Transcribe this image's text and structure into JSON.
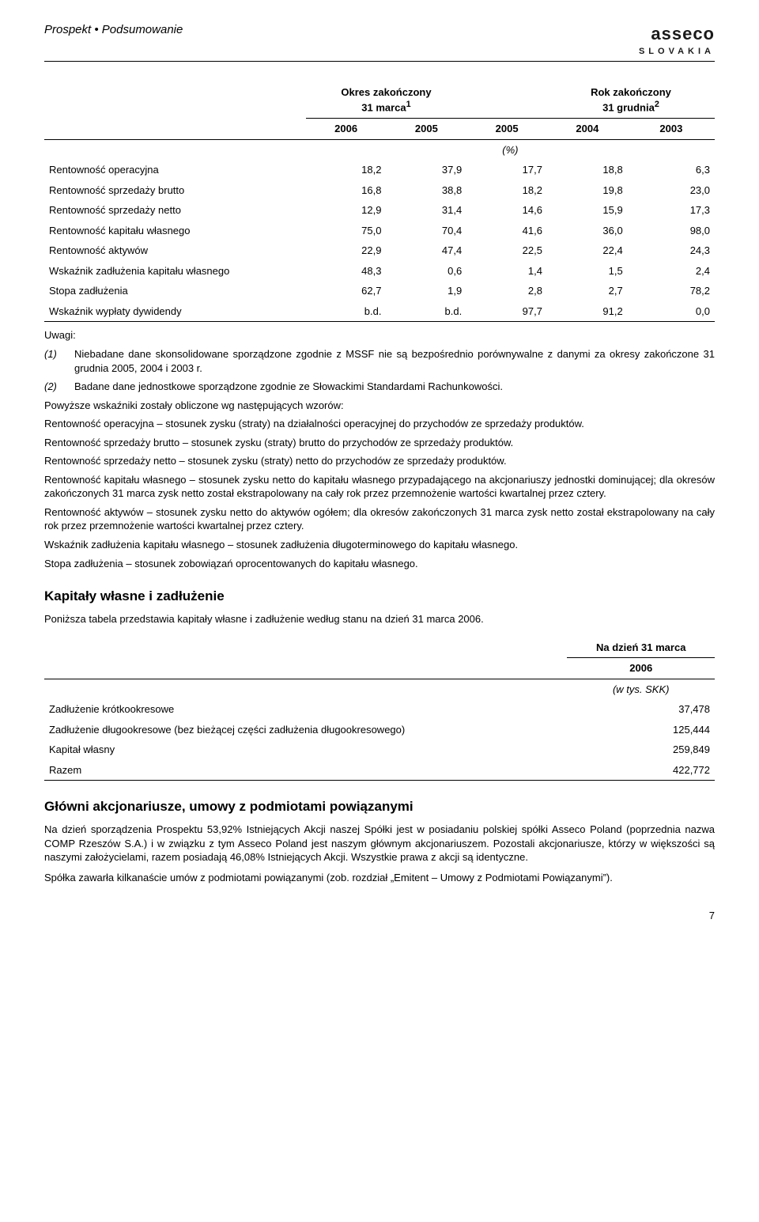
{
  "header": {
    "left": "Prospekt • Podsumowanie",
    "logo_line1": "asseco",
    "logo_line2": "SLOVAKIA"
  },
  "fin_table": {
    "col_header_left": "Okres zakończony\n31 marca",
    "col_header_left_sup": "1",
    "col_header_right": "Rok zakończony\n31 grudnia",
    "col_header_right_sup": "2",
    "years": [
      "2006",
      "2005",
      "2005",
      "2004",
      "2003"
    ],
    "unit": "(%)",
    "rows": [
      {
        "label": "Rentowność operacyjna",
        "vals": [
          "18,2",
          "37,9",
          "17,7",
          "18,8",
          "6,3"
        ]
      },
      {
        "label": "Rentowność sprzedaży brutto",
        "vals": [
          "16,8",
          "38,8",
          "18,2",
          "19,8",
          "23,0"
        ]
      },
      {
        "label": "Rentowność sprzedaży netto",
        "vals": [
          "12,9",
          "31,4",
          "14,6",
          "15,9",
          "17,3"
        ]
      },
      {
        "label": "Rentowność kapitału własnego",
        "vals": [
          "75,0",
          "70,4",
          "41,6",
          "36,0",
          "98,0"
        ]
      },
      {
        "label": "Rentowność aktywów",
        "vals": [
          "22,9",
          "47,4",
          "22,5",
          "22,4",
          "24,3"
        ]
      },
      {
        "label": "Wskaźnik zadłużenia kapitału własnego",
        "vals": [
          "48,3",
          "0,6",
          "1,4",
          "1,5",
          "2,4"
        ]
      },
      {
        "label": "Stopa zadłużenia",
        "vals": [
          "62,7",
          "1,9",
          "2,8",
          "2,7",
          "78,2"
        ]
      },
      {
        "label": "Wskaźnik wypłaty dywidendy",
        "vals": [
          "b.d.",
          "b.d.",
          "97,7",
          "91,2",
          "0,0"
        ]
      }
    ]
  },
  "notes": {
    "heading": "Uwagi:",
    "items": [
      {
        "n": "(1)",
        "t": "Niebadane dane skonsolidowane sporządzone zgodnie z MSSF nie są bezpośrednio porównywalne z danymi za okresy zakończone 31 grudnia 2005, 2004 i 2003 r."
      },
      {
        "n": "(2)",
        "t": "Badane dane jednostkowe sporządzone zgodnie ze Słowackimi Standardami Rachunkowości."
      }
    ],
    "paragraphs": [
      "Powyższe wskaźniki zostały obliczone wg następujących wzorów:",
      "Rentowność operacyjna – stosunek zysku (straty) na działalności operacyjnej do przychodów ze sprzedaży produktów.",
      "Rentowność sprzedaży brutto – stosunek zysku (straty) brutto do przychodów ze sprzedaży produktów.",
      "Rentowność sprzedaży netto – stosunek zysku (straty) netto do przychodów ze sprzedaży produktów.",
      "Rentowność kapitału własnego – stosunek zysku netto do kapitału własnego przypadającego na akcjonariuszy jednostki dominującej; dla okresów zakończonych 31 marca zysk netto został ekstrapolowany na cały rok przez przemnożenie wartości kwartalnej przez cztery.",
      "Rentowność aktywów – stosunek zysku netto do aktywów ogółem; dla okresów zakończonych 31 marca zysk netto został ekstrapolowany na cały rok przez przemnożenie wartości kwartalnej przez cztery.",
      "Wskaźnik zadłużenia kapitału własnego – stosunek zadłużenia długoterminowego do kapitału własnego.",
      "Stopa zadłużenia – stosunek zobowiązań oprocentowanych do kapitału własnego."
    ]
  },
  "kapitaly": {
    "heading": "Kapitały własne i zadłużenie",
    "intro": "Poniższa tabela przedstawia kapitały własne i zadłużenie według stanu na dzień 31 marca 2006.",
    "col_header": "Na dzień 31 marca",
    "year": "2006",
    "unit": "(w tys. SKK)",
    "rows": [
      {
        "label": "Zadłużenie krótkookresowe",
        "val": "37,478"
      },
      {
        "label": "Zadłużenie długookresowe (bez bieżącej części zadłużenia długookresowego)",
        "val": "125,444"
      },
      {
        "label": "Kapitał własny",
        "val": "259,849"
      },
      {
        "label": "Razem",
        "val": "422,772"
      }
    ]
  },
  "glowni": {
    "heading": "Główni akcjonariusze, umowy z podmiotami powiązanymi",
    "p1": "Na dzień sporządzenia Prospektu 53,92% Istniejących Akcji naszej Spółki jest w posiadaniu polskiej spółki Asseco Poland (poprzednia nazwa COMP Rzeszów S.A.) i w związku z tym Asseco Poland jest naszym głównym akcjonariuszem. Pozostali akcjonariusze, którzy w większości są naszymi założycielami, razem posiadają 46,08% Istniejących Akcji. Wszystkie prawa z akcji są identyczne.",
    "p2": "Spółka zawarła kilkanaście umów z podmiotami powiązanymi (zob. rozdział „Emitent – Umowy z Podmiotami Powiązanymi”)."
  },
  "pagenum": "7"
}
